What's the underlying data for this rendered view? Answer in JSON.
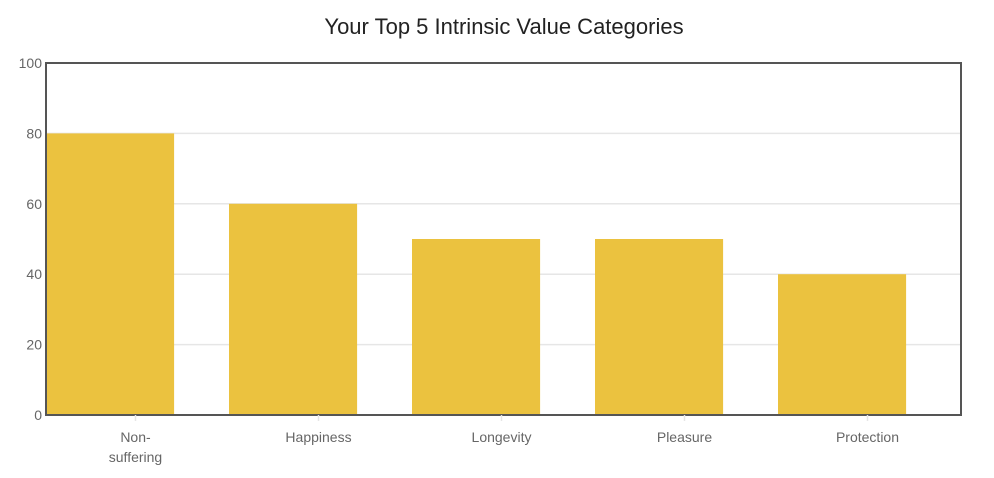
{
  "chart_data": {
    "type": "bar",
    "title": "Your Top 5 Intrinsic Value Categories",
    "xlabel": "",
    "ylabel": "",
    "categories": [
      "Non-suffering",
      "Happiness",
      "Longevity",
      "Pleasure",
      "Protection"
    ],
    "category_label_lines": [
      [
        "Non-",
        "suffering"
      ],
      [
        "Happiness"
      ],
      [
        "Longevity"
      ],
      [
        "Pleasure"
      ],
      [
        "Protection"
      ]
    ],
    "values": [
      80,
      60,
      50,
      50,
      40
    ],
    "ylim": [
      0,
      100
    ],
    "yticks": [
      "0",
      "20",
      "40",
      "60",
      "80",
      "100"
    ],
    "grid": true,
    "legend": "none",
    "colors": {
      "bar": "#ebc23f",
      "grid": "#e6e6e6",
      "axis": "#555555",
      "text": "#666666",
      "title": "#222222"
    }
  }
}
